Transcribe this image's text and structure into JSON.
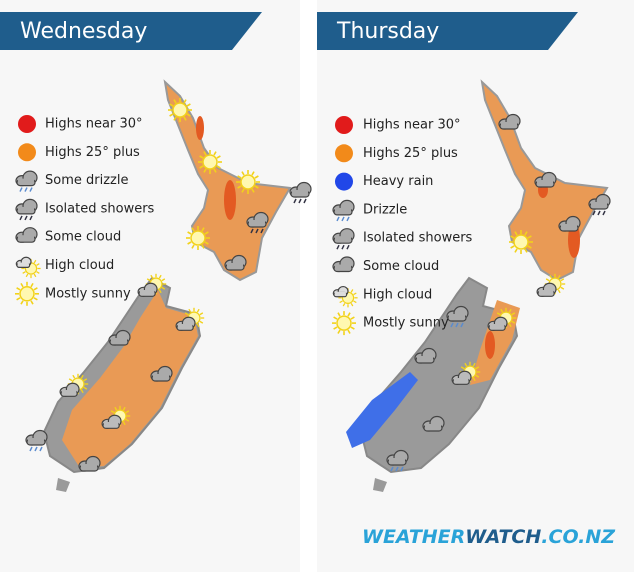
{
  "panels": [
    {
      "day": "Wednesday",
      "legend": [
        "Highs near 30°",
        "Highs 25° plus",
        "Some drizzle",
        "Isolated showers",
        "Some cloud",
        "High cloud",
        "Mostly sunny"
      ]
    },
    {
      "day": "Thursday",
      "legend": [
        "Highs near 30°",
        "Highs 25° plus",
        "Heavy rain",
        "Drizzle",
        "Isolated showers",
        "Some cloud",
        "High cloud",
        "Mostly sunny"
      ]
    }
  ],
  "logo": {
    "part1": "WEATHER",
    "part2": "WATCH",
    "part3": ".CO.NZ"
  }
}
